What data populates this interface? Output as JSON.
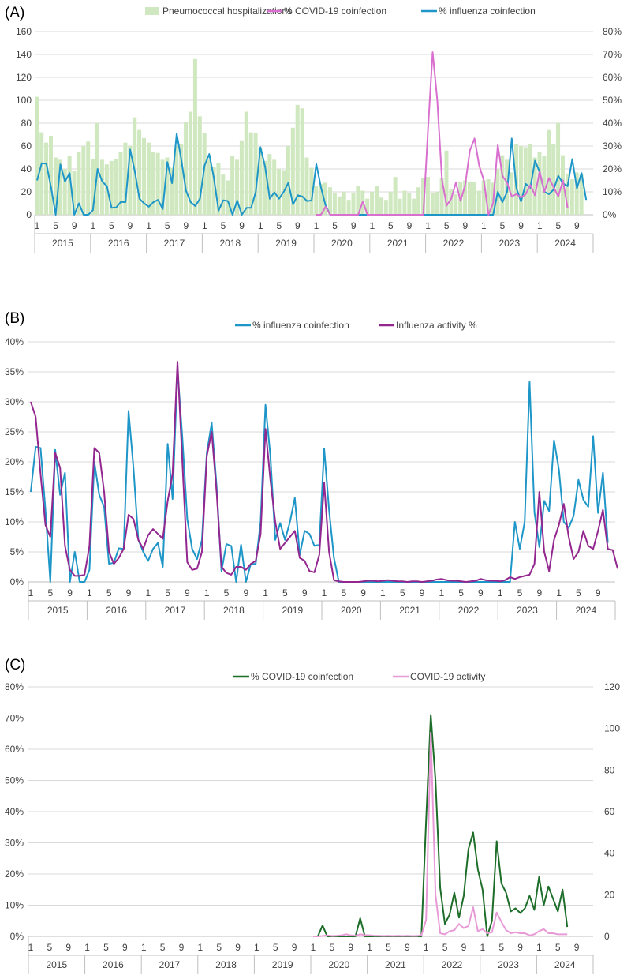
{
  "chart_data": [
    {
      "panel": "(A)",
      "type": "bar+line",
      "legend": [
        "Pneumococcal hospitalizations",
        "% COVID-19 coinfection",
        "% influenza coinfection"
      ],
      "colors": {
        "bars": "#cfe8bf",
        "covid": "#d96fcf",
        "influenza": "#1e96c8"
      },
      "x_month_labels": [
        "1",
        "5",
        "9"
      ],
      "years": [
        "2015",
        "2016",
        "2017",
        "2018",
        "2019",
        "2020",
        "2021",
        "2022",
        "2023",
        "2024"
      ],
      "y_left": {
        "min": 0,
        "max": 160,
        "ticks": [
          "0",
          "20",
          "40",
          "60",
          "80",
          "100",
          "120",
          "140",
          "160"
        ]
      },
      "y_right": {
        "min": 0,
        "max": 80,
        "ticks": [
          "0%",
          "10%",
          "20%",
          "30%",
          "40%",
          "50%",
          "60%",
          "70%",
          "80%"
        ]
      },
      "series": [
        {
          "name": "Pneumococcal hospitalizations",
          "axis": "left",
          "start": 0,
          "values": [
            103,
            72,
            63,
            69,
            50,
            48,
            40,
            51,
            38,
            55,
            60,
            64,
            49,
            80,
            48,
            44,
            47,
            49,
            55,
            63,
            60,
            85,
            74,
            67,
            63,
            55,
            54,
            48,
            50,
            41,
            60,
            62,
            81,
            90,
            136,
            86,
            71,
            48,
            42,
            45,
            35,
            30,
            51,
            48,
            65,
            90,
            72,
            71,
            58,
            47,
            53,
            48,
            40,
            39,
            60,
            76,
            96,
            93,
            50,
            41,
            25,
            27,
            28,
            24,
            19,
            16,
            20,
            13,
            19,
            25,
            21,
            14,
            20,
            25,
            15,
            13,
            20,
            33,
            14,
            21,
            19,
            14,
            24,
            32,
            33,
            19,
            20,
            32,
            56,
            22,
            18,
            29,
            30,
            29,
            29,
            21,
            30,
            31,
            28,
            40,
            52,
            48,
            37,
            62,
            60,
            59,
            62,
            50,
            55,
            51,
            74,
            62,
            80,
            52,
            36,
            31,
            37,
            35
          ]
        },
        {
          "name": "% influenza coinfection",
          "axis": "right",
          "start": 0,
          "values": [
            15,
            22.5,
            22.3,
            12,
            0,
            22,
            14.5,
            18.2,
            0,
            5,
            0,
            0,
            2,
            20,
            14.5,
            12.5,
            3,
            3.2,
            5.6,
            5.5,
            28.5,
            19,
            7,
            5,
            3.5,
            5.5,
            6.5,
            2.5,
            23,
            13.8,
            35.5,
            24,
            10.5,
            5.5,
            3.8,
            7,
            21.5,
            26.5,
            16,
            1.8,
            6.3,
            6,
            0,
            6.2,
            0,
            3,
            3,
            10,
            29.5,
            21,
            7,
            9.8,
            7,
            10,
            14,
            4.5,
            8.5,
            8,
            6,
            6.2,
            22.2,
            12,
            4,
            0,
            0,
            0,
            0,
            0,
            0,
            0,
            0,
            0,
            0,
            0,
            0,
            0,
            0,
            0,
            0,
            0,
            0,
            0,
            0,
            0,
            0,
            0,
            0,
            0,
            0,
            0,
            0,
            0,
            0,
            0,
            0,
            0,
            0,
            0,
            0,
            10,
            5.5,
            10,
            33.3,
            11.6,
            5.8,
            13.5,
            11.8,
            23.6,
            18.7,
            10,
            9,
            11,
            17,
            13.7,
            12.5,
            24.3,
            11.5,
            18.2,
            6.5
          ]
        },
        {
          "name": "% COVID-19 coinfection",
          "axis": "right",
          "start": 60,
          "values": [
            0,
            0,
            3.5,
            0,
            0,
            0,
            0,
            0,
            0,
            0,
            5.8,
            0,
            0,
            0,
            0,
            0,
            0,
            0,
            0,
            0,
            0,
            0,
            0,
            0,
            37,
            71,
            50,
            15.5,
            4,
            7,
            14,
            6,
            13,
            28,
            33.3,
            21.5,
            15,
            0,
            5,
            30.5,
            17,
            14,
            8,
            9,
            7.5,
            9,
            13,
            8.5,
            19,
            10,
            16,
            12,
            8,
            15,
            3
          ]
        }
      ]
    },
    {
      "panel": "(B)",
      "type": "line",
      "legend": [
        "% influenza coinfection",
        "Influenza activity %"
      ],
      "colors": {
        "influenza": "#1e96c8",
        "activity": "#93278f"
      },
      "x_month_labels": [
        "1",
        "5",
        "9"
      ],
      "years": [
        "2015",
        "2016",
        "2017",
        "2018",
        "2019",
        "2020",
        "2021",
        "2022",
        "2023",
        "2024"
      ],
      "y_left": {
        "min": 0,
        "max": 40,
        "ticks": [
          "0%",
          "5%",
          "10%",
          "15%",
          "20%",
          "25%",
          "30%",
          "35%",
          "40%"
        ]
      },
      "series": [
        {
          "name": "% influenza coinfection",
          "axis": "left",
          "start": 0,
          "values": [
            15,
            22.5,
            22.3,
            12,
            0,
            22,
            14.5,
            18.2,
            0,
            5,
            0,
            0,
            2,
            20,
            14.5,
            12.5,
            3,
            3.2,
            5.6,
            5.5,
            28.5,
            19,
            7,
            5,
            3.5,
            5.5,
            6.5,
            2.5,
            23,
            13.8,
            35.5,
            24,
            10.5,
            5.5,
            3.8,
            7,
            21.5,
            26.5,
            16,
            1.8,
            6.3,
            6,
            0,
            6.2,
            0,
            3,
            3,
            10,
            29.5,
            21,
            7,
            9.8,
            7,
            10,
            14,
            4.5,
            8.5,
            8,
            6,
            6.2,
            22.2,
            12,
            4,
            0,
            0,
            0,
            0,
            0,
            0,
            0,
            0,
            0,
            0,
            0,
            0,
            0,
            0,
            0,
            0,
            0,
            0,
            0,
            0,
            0,
            0,
            0,
            0,
            0,
            0,
            0,
            0,
            0,
            0,
            0,
            0,
            0,
            0,
            0,
            0,
            10,
            5.5,
            10,
            33.3,
            11.6,
            5.8,
            13.5,
            11.8,
            23.6,
            18.7,
            10,
            9,
            11,
            17,
            13.7,
            12.5,
            24.3,
            11.5,
            18.2,
            6.5
          ]
        },
        {
          "name": "Influenza activity %",
          "axis": "left",
          "start": 0,
          "values": [
            30,
            27.5,
            18,
            9.5,
            7.5,
            21.5,
            19,
            6,
            2,
            1,
            1,
            1.2,
            6,
            22.3,
            21.5,
            15,
            5,
            3,
            4,
            5.5,
            11.2,
            10.5,
            7,
            5.5,
            7.8,
            8.8,
            8,
            7.2,
            13.5,
            18,
            36.7,
            20,
            3.3,
            2,
            2.2,
            5,
            21,
            25,
            15,
            2.5,
            1.5,
            1.2,
            2.5,
            2.5,
            2,
            3,
            3.5,
            8,
            25.5,
            17,
            10,
            5.5,
            6.5,
            7.5,
            8.5,
            4,
            3.5,
            1.8,
            1.6,
            4.5,
            16.5,
            5,
            0.3,
            0.1,
            0,
            0,
            0,
            0,
            0.1,
            0.2,
            0.2,
            0.1,
            0.2,
            0.3,
            0.2,
            0.1,
            0.1,
            0,
            0.1,
            0.1,
            0,
            0.1,
            0.2,
            0.4,
            0.5,
            0.3,
            0.2,
            0.2,
            0.1,
            0,
            0.1,
            0.2,
            0.5,
            0.3,
            0.2,
            0.2,
            0.1,
            0.3,
            0.8,
            0.5,
            0.8,
            1,
            1.2,
            3,
            15,
            5,
            1.8,
            7,
            9.5,
            13,
            7.5,
            3.8,
            5,
            8.5,
            6,
            5.5,
            8.5,
            12,
            5.5,
            5.3,
            2.2
          ]
        }
      ]
    },
    {
      "panel": "(C)",
      "type": "line",
      "legend": [
        "% COVID-19 coinfection",
        "COVID-19 activity"
      ],
      "colors": {
        "covid": "#1e6e2a",
        "activity": "#e89ad7"
      },
      "x_month_labels": [
        "1",
        "5",
        "9"
      ],
      "years": [
        "2015",
        "2016",
        "2017",
        "2018",
        "2019",
        "2020",
        "2021",
        "2022",
        "2023",
        "2024"
      ],
      "y_left": {
        "min": 0,
        "max": 80,
        "ticks": [
          "0%",
          "10%",
          "20%",
          "30%",
          "40%",
          "50%",
          "60%",
          "70%",
          "80%"
        ]
      },
      "y_right": {
        "min": 0,
        "max": 120,
        "ticks": [
          "0",
          "20",
          "40",
          "60",
          "80",
          "100",
          "120"
        ]
      },
      "series": [
        {
          "name": "% COVID-19 coinfection",
          "axis": "left",
          "start": 60,
          "values": [
            0,
            0,
            3.5,
            0,
            0,
            0,
            0,
            0,
            0,
            0,
            5.8,
            0,
            0,
            0,
            0,
            0,
            0,
            0,
            0,
            0,
            0,
            0,
            0,
            0,
            37,
            71,
            50,
            15.5,
            4,
            7,
            14,
            6,
            13,
            28,
            33.3,
            21.5,
            15,
            0,
            5,
            30.5,
            17,
            14,
            8,
            9,
            7.5,
            9,
            13,
            8.5,
            19,
            10,
            16,
            12,
            8,
            15,
            3
          ]
        },
        {
          "name": "COVID-19 activity",
          "axis": "right",
          "start": 60,
          "values": [
            0,
            0,
            0.2,
            0.5,
            0.2,
            0.3,
            0.5,
            1,
            0.5,
            0.3,
            1,
            0.6,
            0.5,
            0.3,
            0.3,
            0.2,
            0.3,
            0.2,
            0.3,
            0.2,
            0.3,
            0.2,
            0.2,
            0.5,
            8,
            98,
            20,
            1.5,
            1,
            2.5,
            3,
            6,
            4,
            5,
            14,
            2.5,
            3.5,
            1.5,
            2,
            11.5,
            7,
            3,
            1.5,
            2,
            1.5,
            1.5,
            0.5,
            1,
            2.5,
            3.5,
            1.5,
            1.5,
            1,
            1,
            1
          ]
        }
      ]
    }
  ]
}
